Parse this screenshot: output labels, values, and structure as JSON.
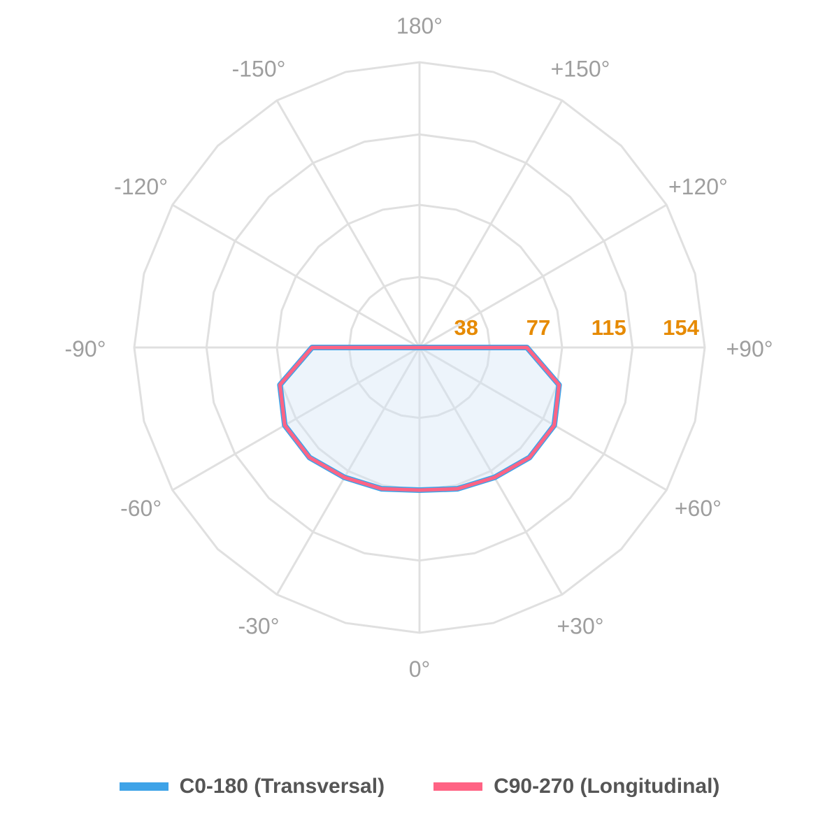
{
  "chart_data": {
    "type": "polar",
    "title": "",
    "angle_labels": [
      {
        "angle": 0,
        "label": "0°"
      },
      {
        "angle": 30,
        "label": "+30°"
      },
      {
        "angle": 60,
        "label": "+60°"
      },
      {
        "angle": 90,
        "label": "+90°"
      },
      {
        "angle": 120,
        "label": "+120°"
      },
      {
        "angle": 150,
        "label": "+150°"
      },
      {
        "angle": 180,
        "label": "180°"
      },
      {
        "angle": -150,
        "label": "-150°"
      },
      {
        "angle": -120,
        "label": "-120°"
      },
      {
        "angle": -90,
        "label": "-90°"
      },
      {
        "angle": -60,
        "label": "-60°"
      },
      {
        "angle": -30,
        "label": "-30°"
      }
    ],
    "radial_ticks": [
      38,
      77,
      115,
      154
    ],
    "radial_max": 154,
    "radial_tick_color": "#e68a00",
    "grid": true,
    "grid_color": "#e0e0e0",
    "polygon_sides": 24,
    "legend_position": "bottom",
    "angles": [
      0,
      15,
      30,
      45,
      60,
      75,
      90,
      105,
      120,
      135,
      150,
      165,
      180
    ],
    "series": [
      {
        "name": "C0-180 (Transversal)",
        "color": "#3ea3e8",
        "fill": "#cfe1f5",
        "fill_opacity": 0.38,
        "values": [
          77,
          79,
          81,
          84,
          84,
          78,
          58,
          0,
          0,
          0,
          0,
          0,
          0
        ]
      },
      {
        "name": "C90-270 (Longitudinal)",
        "color": "#ff6384",
        "fill": "none",
        "fill_opacity": 0,
        "values": [
          77,
          79,
          81,
          84,
          84,
          78,
          58,
          0,
          0,
          0,
          0,
          0,
          0
        ]
      }
    ]
  }
}
